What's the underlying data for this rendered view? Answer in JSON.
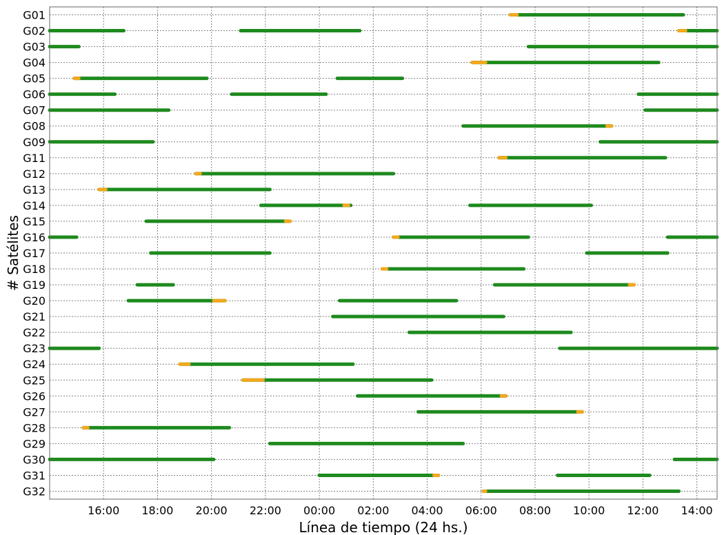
{
  "chart_data": {
    "type": "timeline",
    "xlabel": "Línea de tiempo (24 hs.)",
    "ylabel": "# Satélites",
    "x_unit": "hours since 14:00 (24 h window)",
    "x_ticks": [
      "16:00",
      "18:00",
      "20:00",
      "22:00",
      "00:00",
      "02:00",
      "04:00",
      "06:00",
      "08:00",
      "10:00",
      "12:00",
      "14:00"
    ],
    "grid": true,
    "colors": {
      "tracked": "#1e8a1e",
      "low_elevation": "#f2a81d"
    },
    "satellites": [
      {
        "id": "G01",
        "segments": [
          {
            "start": "07:05",
            "end": "13:30",
            "warn_start": "07:05",
            "warn_end": "07:20"
          }
        ]
      },
      {
        "id": "G02",
        "segments": [
          {
            "start": "14:45",
            "end": "16:45"
          },
          {
            "start": "21:05",
            "end": "01:30"
          },
          {
            "start": "13:20",
            "end": "14:45",
            "warn_start": "13:20",
            "warn_end": "13:35"
          }
        ]
      },
      {
        "id": "G03",
        "segments": [
          {
            "start": "14:45",
            "end": "15:05"
          },
          {
            "start": "07:45",
            "end": "14:45"
          }
        ]
      },
      {
        "id": "G04",
        "segments": [
          {
            "start": "05:40",
            "end": "12:35",
            "warn_start": "05:40",
            "warn_end": "06:10"
          }
        ]
      },
      {
        "id": "G05",
        "segments": [
          {
            "start": "14:55",
            "end": "19:50",
            "warn_start": "14:55",
            "warn_end": "15:05"
          },
          {
            "start": "00:40",
            "end": "03:05"
          }
        ]
      },
      {
        "id": "G06",
        "segments": [
          {
            "start": "14:45",
            "end": "16:25"
          },
          {
            "start": "20:45",
            "end": "00:15"
          },
          {
            "start": "11:50",
            "end": "14:45"
          }
        ]
      },
      {
        "id": "G07",
        "segments": [
          {
            "start": "14:45",
            "end": "18:25"
          },
          {
            "start": "12:05",
            "end": "14:45"
          }
        ]
      },
      {
        "id": "G08",
        "segments": [
          {
            "start": "05:20",
            "end": "10:50",
            "warn_start": "10:40",
            "warn_end": "10:50"
          }
        ]
      },
      {
        "id": "G09",
        "segments": [
          {
            "start": "14:45",
            "end": "17:50"
          },
          {
            "start": "10:25",
            "end": "14:45"
          }
        ]
      },
      {
        "id": "G11",
        "segments": [
          {
            "start": "06:40",
            "end": "12:50",
            "warn_start": "06:40",
            "warn_end": "06:55"
          }
        ]
      },
      {
        "id": "G12",
        "segments": [
          {
            "start": "19:25",
            "end": "02:45",
            "warn_start": "19:25",
            "warn_end": "19:35"
          }
        ]
      },
      {
        "id": "G13",
        "segments": [
          {
            "start": "15:50",
            "end": "22:10",
            "warn_start": "15:50",
            "warn_end": "16:05"
          }
        ]
      },
      {
        "id": "G14",
        "segments": [
          {
            "start": "21:50",
            "end": "01:10",
            "warn_start": "00:55",
            "warn_end": "01:05"
          },
          {
            "start": "05:35",
            "end": "10:05"
          }
        ]
      },
      {
        "id": "G15",
        "segments": [
          {
            "start": "17:35",
            "end": "22:55",
            "warn_start": "22:45",
            "warn_end": "22:55"
          }
        ]
      },
      {
        "id": "G16",
        "segments": [
          {
            "start": "14:45",
            "end": "15:00"
          },
          {
            "start": "02:45",
            "end": "07:45",
            "warn_start": "02:45",
            "warn_end": "02:55"
          },
          {
            "start": "12:55",
            "end": "14:45"
          }
        ]
      },
      {
        "id": "G17",
        "segments": [
          {
            "start": "17:45",
            "end": "22:10"
          },
          {
            "start": "09:55",
            "end": "12:55"
          }
        ]
      },
      {
        "id": "G18",
        "segments": [
          {
            "start": "02:20",
            "end": "07:35",
            "warn_start": "02:20",
            "warn_end": "02:30"
          }
        ]
      },
      {
        "id": "G19",
        "segments": [
          {
            "start": "17:15",
            "end": "18:35"
          },
          {
            "start": "06:30",
            "end": "11:40",
            "warn_start": "11:30",
            "warn_end": "11:40"
          }
        ]
      },
      {
        "id": "G20",
        "segments": [
          {
            "start": "16:55",
            "end": "20:30",
            "warn_start": "20:05",
            "warn_end": "20:30"
          },
          {
            "start": "00:45",
            "end": "05:05"
          }
        ]
      },
      {
        "id": "G21",
        "segments": [
          {
            "start": "00:30",
            "end": "06:50"
          }
        ]
      },
      {
        "id": "G22",
        "segments": [
          {
            "start": "03:20",
            "end": "09:20"
          }
        ]
      },
      {
        "id": "G23",
        "segments": [
          {
            "start": "14:45",
            "end": "15:50"
          },
          {
            "start": "08:55",
            "end": "14:45"
          }
        ]
      },
      {
        "id": "G24",
        "segments": [
          {
            "start": "18:50",
            "end": "01:15",
            "warn_start": "18:50",
            "warn_end": "19:10"
          }
        ]
      },
      {
        "id": "G25",
        "segments": [
          {
            "start": "21:10",
            "end": "04:10",
            "warn_start": "21:10",
            "warn_end": "21:55"
          }
        ]
      },
      {
        "id": "G26",
        "segments": [
          {
            "start": "01:25",
            "end": "06:55",
            "warn_start": "06:45",
            "warn_end": "06:55"
          }
        ]
      },
      {
        "id": "G27",
        "segments": [
          {
            "start": "03:40",
            "end": "09:45",
            "warn_start": "09:35",
            "warn_end": "09:45"
          }
        ]
      },
      {
        "id": "G28",
        "segments": [
          {
            "start": "15:15",
            "end": "20:40",
            "warn_start": "15:15",
            "warn_end": "15:25"
          }
        ]
      },
      {
        "id": "G29",
        "segments": [
          {
            "start": "22:10",
            "end": "05:20"
          }
        ]
      },
      {
        "id": "G30",
        "segments": [
          {
            "start": "14:45",
            "end": "20:05"
          },
          {
            "start": "13:10",
            "end": "14:45"
          }
        ]
      },
      {
        "id": "G31",
        "segments": [
          {
            "start": "00:00",
            "end": "04:25",
            "warn_start": "04:15",
            "warn_end": "04:25"
          },
          {
            "start": "08:50",
            "end": "12:15"
          }
        ]
      },
      {
        "id": "G32",
        "segments": [
          {
            "start": "06:05",
            "end": "13:20",
            "warn_start": "06:05",
            "warn_end": "06:10"
          }
        ]
      }
    ]
  }
}
